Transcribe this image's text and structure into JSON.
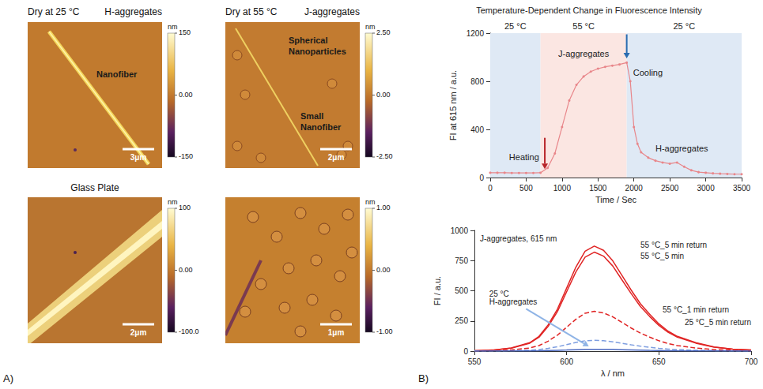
{
  "panel_labels": [
    "A)",
    "B)"
  ],
  "afm_images": [
    {
      "title": "Dry at 25 °C",
      "subtitle": "H-aggregates",
      "annotations": [
        "Nanofiber"
      ],
      "scale_bar": "3μm",
      "colorbar": {
        "unit": "nm",
        "range": [
          -150,
          150
        ],
        "ticks": [
          150,
          {
            "value": 0,
            "label": "0.00"
          },
          -150
        ]
      }
    },
    {
      "title": "Dry at 55 °C",
      "subtitle": "J-aggregates",
      "annotations": [
        "Spherical Nanoparticles",
        "Small Nanofiber"
      ],
      "scale_bar": "2μm",
      "colorbar": {
        "unit": "nm",
        "range": [
          -2.5,
          2.5
        ],
        "ticks": [
          {
            "value": 2.5,
            "label": "2.50"
          },
          {
            "value": 0,
            "label": "0.00"
          },
          {
            "value": -2.5,
            "label": "-2.50"
          }
        ]
      }
    },
    {
      "title": "Glass Plate",
      "annotations": [],
      "scale_bar": "2μm",
      "colorbar": {
        "unit": "nm",
        "range": [
          -100,
          100
        ],
        "ticks": [
          100,
          {
            "value": 0,
            "label": "0.00"
          },
          {
            "value": -100,
            "label": "-100.0"
          }
        ]
      }
    },
    {
      "annotations": [],
      "scale_bar": "1μm",
      "colorbar": {
        "unit": "nm",
        "range": [
          -1,
          1
        ],
        "ticks": [
          {
            "value": 1,
            "label": "1.00"
          },
          {
            "value": 0,
            "label": "0.00"
          },
          {
            "value": -1,
            "label": "-1.00"
          }
        ]
      }
    }
  ],
  "chart_data": [
    {
      "type": "line",
      "title": "Temperature-Dependent Change in Fluorescence Intensity",
      "x_label": "Time / Sec",
      "y_label": "FI at 615 nm / a.u.",
      "xlim": [
        0,
        3500
      ],
      "xticks": [
        0,
        500,
        1000,
        1500,
        2000,
        2500,
        3000,
        3500
      ],
      "ylim": [
        0,
        1200
      ],
      "yticks": [
        0,
        400,
        800,
        1200
      ],
      "grid": false,
      "color": "#e8868a",
      "marker": "circle",
      "x": [
        0,
        100,
        200,
        300,
        400,
        500,
        600,
        700,
        800,
        900,
        1000,
        1100,
        1200,
        1300,
        1400,
        1500,
        1600,
        1700,
        1800,
        1900,
        1950,
        2000,
        2050,
        2100,
        2200,
        2300,
        2400,
        2500,
        2600,
        2700,
        2800,
        2900,
        3000,
        3100,
        3200,
        3300,
        3400,
        3500
      ],
      "values": [
        40,
        40,
        40,
        38,
        38,
        38,
        38,
        40,
        80,
        200,
        420,
        640,
        770,
        840,
        880,
        905,
        920,
        930,
        940,
        955,
        800,
        420,
        280,
        210,
        165,
        140,
        125,
        115,
        125,
        90,
        60,
        45,
        40,
        35,
        32,
        30,
        28,
        28
      ],
      "regions": [
        {
          "label": "25 °C",
          "from": 0,
          "to": 700,
          "color": "#dfe9f5"
        },
        {
          "label": "55 °C",
          "from": 700,
          "to": 1900,
          "color": "#fbe6e2"
        },
        {
          "label": "25 °C",
          "from": 1900,
          "to": 3500,
          "color": "#dfe9f5"
        }
      ],
      "annotations": [
        {
          "text": "Heating",
          "color": "#b8262a"
        },
        {
          "text": "J-aggregates"
        },
        {
          "text": "Cooling",
          "color": "#2a6cb0"
        },
        {
          "text": "H-aggregates"
        }
      ]
    },
    {
      "type": "line",
      "x_label": "λ / nm",
      "y_label": "FI / a.u.",
      "xlim": [
        550,
        700
      ],
      "xticks": [
        550,
        600,
        650,
        700
      ],
      "ylim": [
        0,
        1000
      ],
      "yticks": [
        0,
        250,
        500,
        750,
        1000
      ],
      "grid": false,
      "x": [
        550,
        560,
        570,
        580,
        585,
        590,
        595,
        600,
        605,
        610,
        615,
        620,
        625,
        630,
        635,
        640,
        645,
        650,
        655,
        660,
        670,
        680,
        690,
        700
      ],
      "series": [
        {
          "name": "55 °C_5 min return",
          "color": "#e02424",
          "line_style": "solid",
          "values": [
            4,
            9,
            26,
            70,
            122,
            218,
            348,
            522,
            696,
            827,
            870,
            835,
            748,
            626,
            505,
            392,
            305,
            226,
            165,
            122,
            70,
            35,
            17,
            9
          ]
        },
        {
          "name": "55 °C_5 min",
          "color": "#e02424",
          "line_style": "solid",
          "values": [
            4,
            8,
            25,
            66,
            115,
            205,
            328,
            492,
            656,
            779,
            820,
            787,
            705,
            590,
            476,
            369,
            287,
            213,
            156,
            115,
            66,
            33,
            16,
            8
          ]
        },
        {
          "name": "55 °C_1 min return",
          "color": "#e02424",
          "line_style": "dashed",
          "values": [
            2,
            3,
            10,
            26,
            46,
            83,
            132,
            198,
            264,
            314,
            330,
            317,
            284,
            238,
            191,
            149,
            116,
            86,
            63,
            46,
            26,
            13,
            7,
            3
          ]
        },
        {
          "name": "25 °C_5 min return",
          "color": "#7e9ee0",
          "line_style": "dashed",
          "values": [
            1,
            1,
            3,
            7,
            13,
            23,
            36,
            54,
            72,
            86,
            90,
            86,
            77,
            65,
            52,
            41,
            32,
            23,
            17,
            13,
            7,
            4,
            2,
            1
          ]
        },
        {
          "name": "25 °C H-aggregates",
          "color": "#4a68c0",
          "line_style": "solid",
          "values": [
            0,
            1,
            1,
            2,
            3,
            5,
            7,
            9,
            12,
            14,
            15,
            15,
            14,
            12,
            10,
            8,
            6,
            5,
            4,
            3,
            2,
            1,
            1,
            0
          ]
        }
      ],
      "annotations": [
        {
          "text": "J-aggregates, 615 nm"
        }
      ]
    }
  ]
}
